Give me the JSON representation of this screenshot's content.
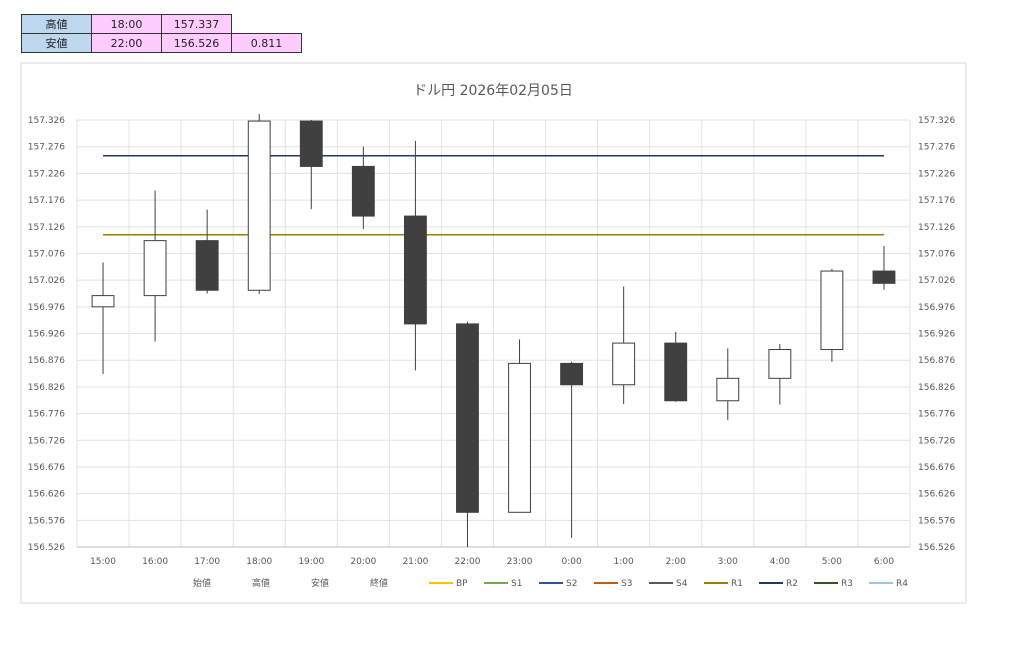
{
  "summary": {
    "high_label": "高値",
    "high_time": "18:00",
    "high_value": "157.337",
    "low_label": "安値",
    "low_time": "22:00",
    "low_value": "156.526",
    "range_value": "0.811"
  },
  "chart_data": {
    "type": "candlestick",
    "title": "ドル円  2026年02月05日",
    "xlabel": "",
    "ylabel": "",
    "ylim": [
      156.526,
      157.326
    ],
    "ytick_step": 0.05,
    "grid": true,
    "legend_position": "bottom",
    "categories": [
      "15:00",
      "16:00",
      "17:00",
      "18:00",
      "19:00",
      "20:00",
      "21:00",
      "22:00",
      "23:00",
      "0:00",
      "1:00",
      "2:00",
      "3:00",
      "4:00",
      "5:00",
      "6:00"
    ],
    "open": [
      156.976,
      156.997,
      157.1,
      157.007,
      157.324,
      157.239,
      157.146,
      156.944,
      156.591,
      156.87,
      156.83,
      156.908,
      156.8,
      156.842,
      156.896,
      157.043
    ],
    "high": [
      157.059,
      157.194,
      157.158,
      157.337,
      157.326,
      157.276,
      157.287,
      156.948,
      156.915,
      156.873,
      157.014,
      156.929,
      156.898,
      156.906,
      157.047,
      157.09
    ],
    "low": [
      156.85,
      156.911,
      157.001,
      157.0,
      157.159,
      157.122,
      156.857,
      156.526,
      156.591,
      156.543,
      156.794,
      156.798,
      156.764,
      156.793,
      156.873,
      157.008
    ],
    "close": [
      156.997,
      157.1,
      157.007,
      157.324,
      157.239,
      157.146,
      156.944,
      156.591,
      156.87,
      156.83,
      156.908,
      156.8,
      156.842,
      156.896,
      157.043,
      157.02
    ],
    "up_color": "#ffffff",
    "down_color": "#404040",
    "levels": [
      {
        "name": "R1",
        "value": 157.111,
        "color": "#9e7c00"
      },
      {
        "name": "R2",
        "value": 157.259,
        "color": "#203864"
      }
    ],
    "legend": [
      {
        "label": "始値",
        "color": ""
      },
      {
        "label": "高値",
        "color": ""
      },
      {
        "label": "安値",
        "color": ""
      },
      {
        "label": "終値",
        "color": ""
      },
      {
        "label": "BP",
        "color": "#ffc000"
      },
      {
        "label": "S1",
        "color": "#70ad47"
      },
      {
        "label": "S2",
        "color": "#2f5597"
      },
      {
        "label": "S3",
        "color": "#c55a11"
      },
      {
        "label": "S4",
        "color": "#595959"
      },
      {
        "label": "R1",
        "color": "#9e7c00"
      },
      {
        "label": "R2",
        "color": "#203864"
      },
      {
        "label": "R3",
        "color": "#375623"
      },
      {
        "label": "R4",
        "color": "#9dc3e6"
      }
    ]
  }
}
